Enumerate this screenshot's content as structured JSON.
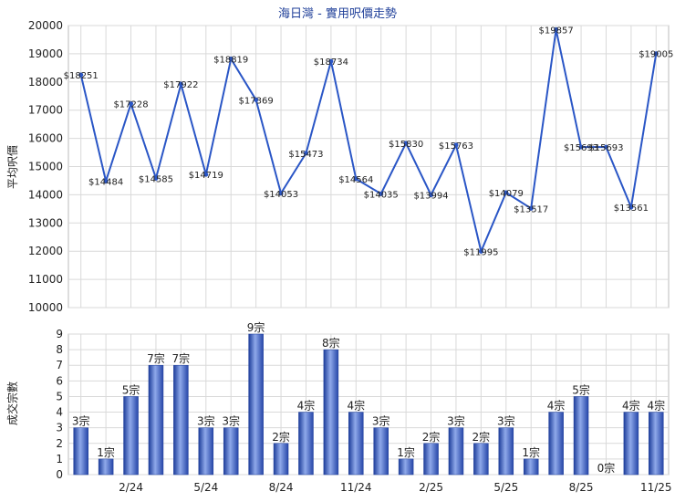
{
  "chart_data": [
    {
      "type": "line",
      "title": "海日灣 - 實用呎價走勢",
      "ylabel": "平均呎價",
      "ylim": [
        10000,
        20000
      ],
      "yticks": [
        "10000",
        "11000",
        "12000",
        "13000",
        "14000",
        "15000",
        "16000",
        "17000",
        "18000",
        "19000",
        "20000"
      ],
      "values": [
        18251,
        14484,
        17228,
        14585,
        17922,
        14719,
        18819,
        17369,
        14053,
        15473,
        18734,
        14564,
        14035,
        15830,
        13994,
        15763,
        11995,
        14079,
        13517,
        19857,
        15693,
        15693,
        13561,
        19005
      ],
      "value_labels": [
        "$18251",
        "$14484",
        "$17228",
        "$14585",
        "$17922",
        "$14719",
        "$18819",
        "$17369",
        "$14053",
        "$15473",
        "$18734",
        "$14564",
        "$14035",
        "$15830",
        "$13994",
        "$15763",
        "$11995",
        "$14079",
        "$13517",
        "$19857",
        "$15693",
        "$15693",
        "$13561",
        "$19005"
      ],
      "color": "#2a56c6"
    },
    {
      "type": "bar",
      "ylabel": "成交宗數",
      "ylim": [
        0,
        9
      ],
      "yticks": [
        "0",
        "1",
        "2",
        "3",
        "4",
        "5",
        "6",
        "7",
        "8",
        "9"
      ],
      "values": [
        3,
        1,
        5,
        7,
        7,
        3,
        3,
        9,
        2,
        4,
        8,
        4,
        3,
        1,
        2,
        3,
        2,
        3,
        1,
        4,
        5,
        0,
        4,
        4
      ],
      "value_labels": [
        "3宗",
        "1宗",
        "5宗",
        "7宗",
        "7宗",
        "3宗",
        "3宗",
        "9宗",
        "2宗",
        "4宗",
        "8宗",
        "4宗",
        "3宗",
        "1宗",
        "2宗",
        "3宗",
        "2宗",
        "3宗",
        "1宗",
        "4宗",
        "5宗",
        "0宗",
        "4宗",
        "4宗"
      ],
      "x_tick_labels": [
        {
          "index": 2,
          "label": "2/24"
        },
        {
          "index": 5,
          "label": "5/24"
        },
        {
          "index": 8,
          "label": "8/24"
        },
        {
          "index": 11,
          "label": "11/24"
        },
        {
          "index": 14,
          "label": "2/25"
        },
        {
          "index": 17,
          "label": "5/25"
        },
        {
          "index": 20,
          "label": "8/25"
        },
        {
          "index": 23,
          "label": "11/25"
        }
      ],
      "color": "#3a5fc8"
    }
  ]
}
